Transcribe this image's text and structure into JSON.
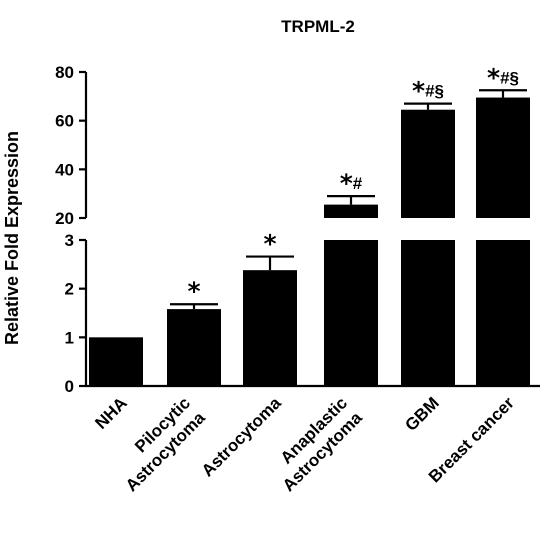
{
  "chart_data": {
    "type": "bar",
    "title": "TRPML-2",
    "ylabel": "Relative Fold Expression",
    "xlabel": "",
    "y_axis_break": true,
    "lower_segment": {
      "ylim": [
        0,
        3
      ],
      "ticks": [
        "0",
        "1",
        "2",
        "3"
      ]
    },
    "upper_segment": {
      "ylim": [
        20,
        80
      ],
      "ticks": [
        "20",
        "40",
        "60",
        "80"
      ]
    },
    "categories": [
      [
        "NHA"
      ],
      [
        "Pilocytic",
        "Astrocytoma"
      ],
      [
        "Astrocytoma"
      ],
      [
        "Anaplastic",
        "Astrocytoma"
      ],
      [
        "GBM"
      ],
      [
        "Breast cancer"
      ]
    ],
    "values": [
      1.0,
      1.58,
      2.38,
      25.5,
      64.5,
      69.5
    ],
    "errors": [
      0.0,
      0.1,
      0.28,
      3.5,
      2.5,
      3.0
    ],
    "significance": [
      {
        "star": "",
        "rest": ""
      },
      {
        "star": "*",
        "rest": ""
      },
      {
        "star": "*",
        "rest": ""
      },
      {
        "star": "*",
        "rest": "#"
      },
      {
        "star": "*",
        "rest": "#§"
      },
      {
        "star": "*",
        "rest": "#§"
      }
    ],
    "bar_color": "#000000",
    "grid": false,
    "legend": "none"
  }
}
